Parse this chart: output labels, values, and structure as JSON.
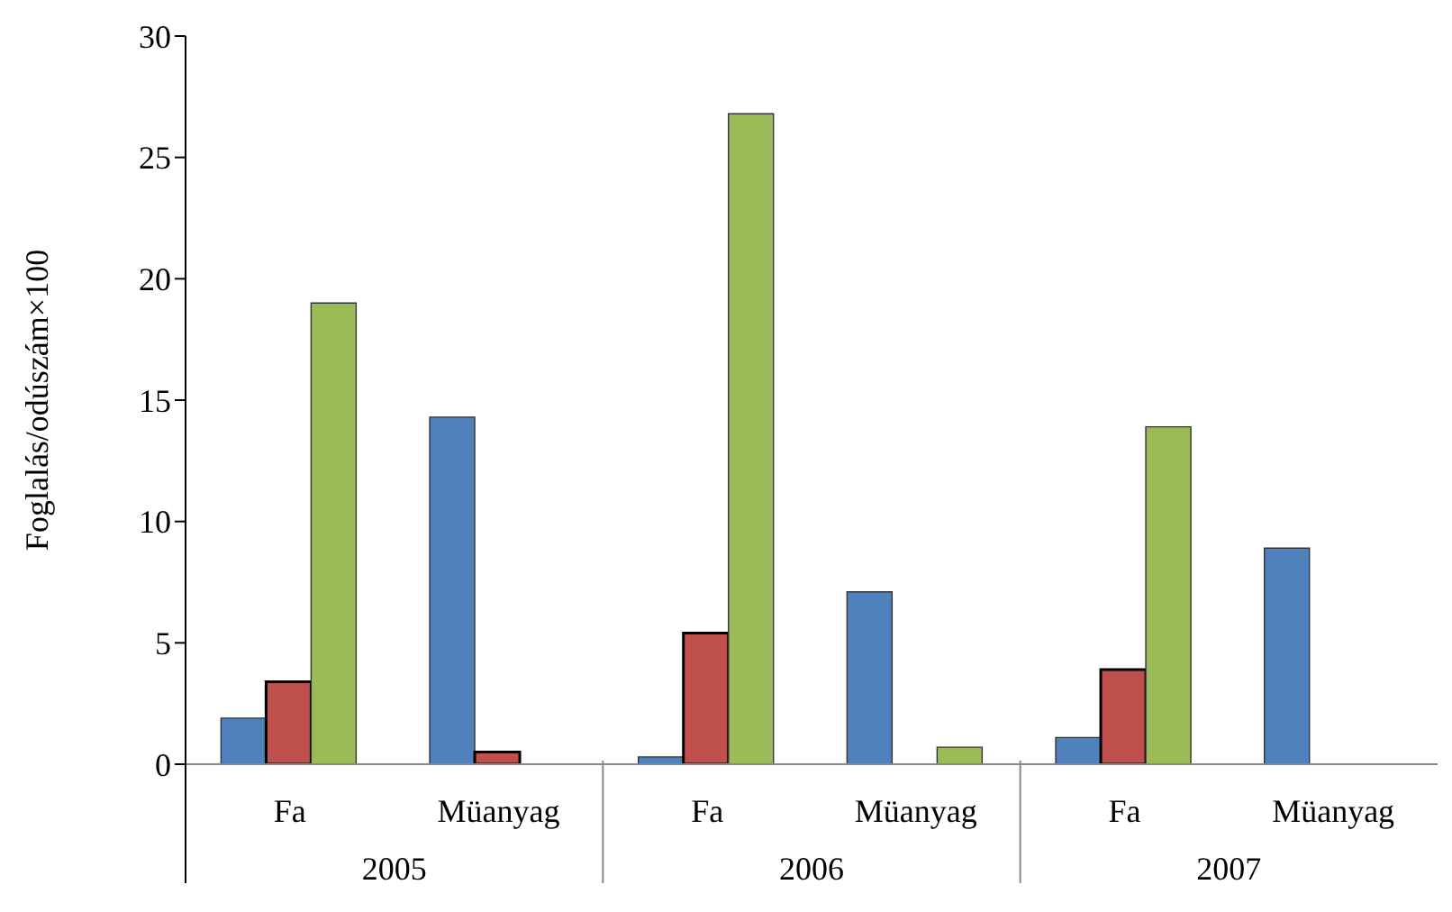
{
  "chart_data": {
    "type": "bar",
    "ylabel": "Foglalás/odúszám×100",
    "categories": [
      "Fa",
      "Müanyag",
      "Fa",
      "Müanyag",
      "Fa",
      "Müanyag"
    ],
    "series": [
      {
        "color": "#4f81bd",
        "values": [
          1.9,
          14.3,
          0.3,
          7.1,
          1.1,
          8.9
        ]
      },
      {
        "color": "#c0504d",
        "values": [
          3.4,
          0.5,
          5.4,
          0,
          3.9,
          0
        ]
      },
      {
        "color": "#9bbb59",
        "values": [
          19.0,
          0,
          26.8,
          0.7,
          13.9,
          0
        ]
      }
    ],
    "annotations": [
      "2005",
      "2006",
      "2007"
    ],
    "ylim": [
      0,
      30
    ],
    "yticks": [
      0,
      5,
      10,
      15,
      20,
      25,
      30
    ],
    "grid": false,
    "legend": false
  }
}
